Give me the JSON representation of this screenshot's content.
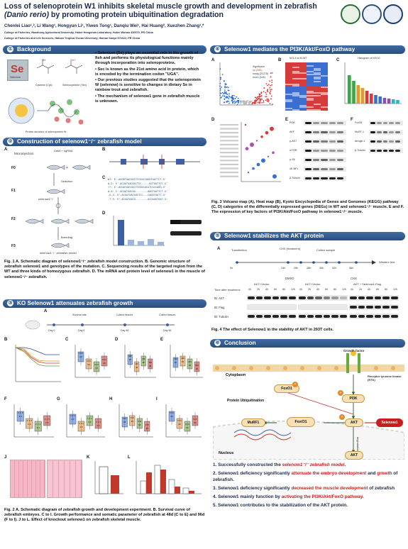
{
  "title": {
    "line1": "Loss of selenoprotein W1 inhibits skeletal muscle growth and development in zebrafish",
    "line2_species": "(Danio rerio)",
    "line2_rest": " by promoting protein ubiquitination degradation"
  },
  "authors": "Chenlei Liao¹,², Li Wang¹, Hongyun Li¹, Yiwen Tong¹, Danqiu Wei¹, Hai Huang², Xuezhen Zhang¹,*",
  "affiliations": [
    "College of Fisheries, Huazhong Agricultural University, Hubei Hongshan Laboratory, Hubei Wuhan 430070, PR China",
    "College of Fisheries and Life Sciences, Hainan Tropical Ocean University, Hainan Sanya 572022, PR China"
  ],
  "sections": {
    "background": {
      "num": "①",
      "title": "Background"
    },
    "construction": {
      "num": "②",
      "title": "Construction of selenow1⁻/⁻ zebrafish model"
    },
    "ko": {
      "num": "③",
      "title": "KO Selenow1 attenuates zebrafish growth"
    },
    "pathway": {
      "num": "④",
      "title": "Selenow1 mediates the PI3K/Akt/FoxO pathway"
    },
    "akt": {
      "num": "⑤",
      "title": "Selenow1 stabilizes the AKT protein"
    },
    "conclusion": {
      "num": "⑥",
      "title": "Conclusion"
    }
  },
  "background_bullets": [
    "Selenium (Se) plays an essential role in the growth of fish and performs its physiological functions mainly through incorporation into selenoproteins.",
    "Sec is known as the 21st amino acid in protein, which is encoded by the termination codon \"UGA\".",
    "Our previous studies suggested that the selenoprotein W (selenow) is sensitive to changes in dietary Se in rainbow trout and zebrafish.",
    "The mechanism of selenow1 gene in zebrafish muscle is unknown."
  ],
  "background_labels": {
    "element": "Se",
    "element_name": "Selenium",
    "cysteine": "Cysteine (Cys)",
    "selenocysteine": "Selenocysteine (Sec)",
    "fig_note": "Protein structure of selenoprotein W"
  },
  "fig1": {
    "labels": [
      "A",
      "B",
      "C",
      "D"
    ],
    "f_generations": [
      "F0",
      "F1",
      "F2",
      "F3"
    ],
    "microinjection": "Microinjection",
    "cas9": "Cas9 + sgRNA",
    "selection": "Selection",
    "breeding": "Breeding",
    "selenow1_pm": "selenow1⁺/⁻",
    "selenow1_mm": "selenow1⁻/⁻ zebrafish model",
    "wt": "WT",
    "caption": "Fig. 1 A. Schematic diagram of selenow1⁻/⁻ zebrafish model construction. B. Genomic structure of zebrafish selenow1 and genotypes of the mutation. C. Sequencing results of the targeted region from the WT and three kinds of homozygous zebrafish. D. The mRNA and protein level of selenow1 in the muscle of selenow1⁻/⁻ zebrafish."
  },
  "fig2": {
    "timeline": [
      "Day 0",
      "Day 5",
      "Day 48",
      "Day 96"
    ],
    "timeline_top": [
      "Survival rate",
      "Collect tissues",
      "Collect tissues"
    ],
    "panel_labels": [
      "A",
      "B",
      "C",
      "D",
      "E",
      "F",
      "G",
      "H",
      "I",
      "J",
      "K",
      "L"
    ],
    "legend": [
      "WT",
      "selenow1⁻/⁻"
    ],
    "caption": "Fig. 2 A. Schematic diagram of zebrafish growth and development experiment. B. Survival curve of zebrafish embryos. C to I. Growth performance and somatic parameter of zebrafish at 48d (C to E) and 96d (F to I). J to L. Effect of knockout selenow1 on zebrafish skeletal muscle."
  },
  "fig3": {
    "panel_labels": [
      "A",
      "B",
      "C",
      "D",
      "E",
      "F"
    ],
    "volcano_legend": [
      "up (590)",
      "nosig (21275)",
      "down (546)"
    ],
    "legend_title": "Significant",
    "heatmap_title": "M-5.3 vs M-WT",
    "kegg_title": "Histogram of KEGG",
    "blots_e": [
      "PI3K",
      "AKT",
      "p-AKT",
      "mTOR",
      "p-S6",
      "4E-BP1",
      "β-Tubulin"
    ],
    "blots_f": [
      "FoxO1",
      "MuRF-1",
      "Atrogin-1",
      "β-Tubulin"
    ],
    "caption": "Fig. 3 Volcano map (A), Heat map (B), Kyoto Encyclopedia of Genes and Genomes (KEGG) pathway (C, D) categories of the differentially expressed genes (DEGs) in WT and selenow1⁻/⁻ muscle. E and F. The expression of key factors of PI3K/Akt/FoxO pathway in selenow1⁻/⁻ muscle."
  },
  "fig4": {
    "label": "A",
    "timeline_top": [
      "Transfection",
      "CHX (treatment)",
      "Collect sample"
    ],
    "timeline_ticks": [
      "0h",
      "24h",
      "26h",
      "28h",
      "30h",
      "32h",
      "36h"
    ],
    "western": "Western blot",
    "groups": [
      "DMSO",
      "CHX"
    ],
    "subgroups": [
      "AKT+Vector",
      "AKT+Vector",
      "AKT + Selenow1-Flag"
    ],
    "time_label": "Time after treatment:",
    "times": [
      "0h",
      "2h",
      "4h",
      "6h",
      "8h",
      "12h"
    ],
    "blots": [
      "IB: AKT",
      "IB: Flag",
      "IB: Tubulin"
    ],
    "caption": "Fig. 4 The effect of Selenow1 in the stability of AKT in 293T cells."
  },
  "pathway_diagram": {
    "growth_factor": "Growth factor",
    "cytoplasm": "Cytoplasm",
    "receptor": "Receptor tyrosine kinase (RTK)",
    "protein_ub": "Protein Ubiquitination",
    "nucleus": "Nucleus",
    "nodes": [
      "FoxO1",
      "PI3K",
      "AKT",
      "MuRF1",
      "FoxO1",
      "Selenow1",
      "AKT"
    ],
    "phospho": "P",
    "degradation": "degradation"
  },
  "conclusions": [
    {
      "pre": "1. Successfully constructed the ",
      "hi": "selenow1⁻/⁻ zebrafish model",
      "post": "."
    },
    {
      "pre": "2. Selenow1 deficiency significantly ",
      "hi": "attenuate the embryo development",
      "mid": " and ",
      "hi2": "growth",
      "post": " of zebrafish."
    },
    {
      "pre": "3. Selenow1 deficiency significantly ",
      "hi": "decreased the muscle development",
      "post": " of zebrafish"
    },
    {
      "pre": "4. Selenow1 mainly function by ",
      "hi": "activating the PI3K/Akt/FoxO pathway",
      "post": "."
    },
    {
      "pre": "5. Selenow1 contributes to the stabilization of the AKT protein.",
      "hi": "",
      "post": ""
    }
  ],
  "colors": {
    "header": "#2a4f80",
    "accent_red": "#c81e1e",
    "title": "#1b2a4a"
  }
}
